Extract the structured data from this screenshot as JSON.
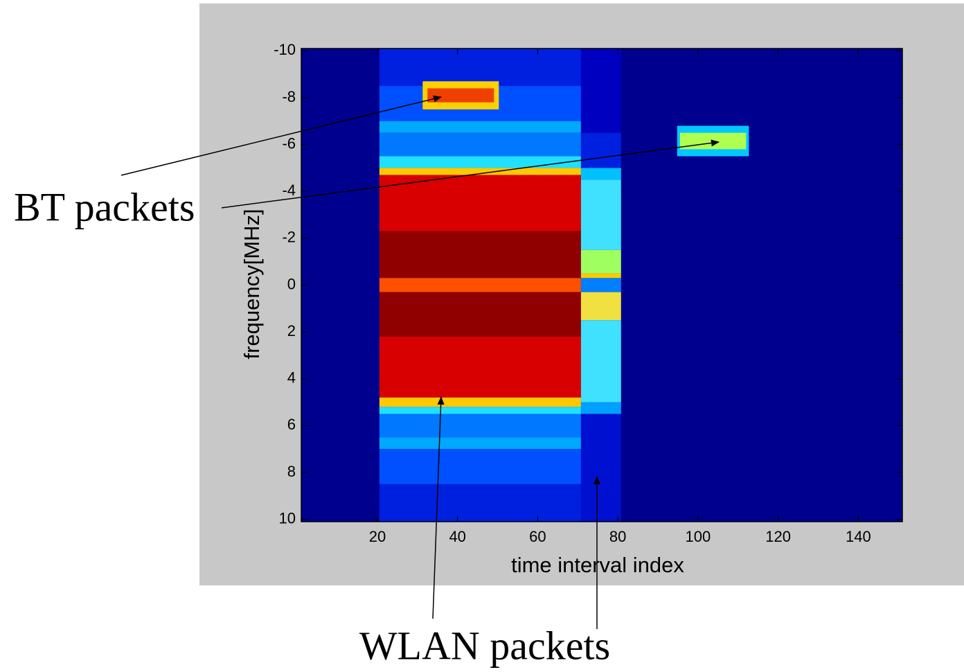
{
  "chart_data": {
    "type": "heatmap",
    "xlabel": "time interval index",
    "ylabel": "frequency[MHz]",
    "xlim": [
      1,
      151
    ],
    "ylim": [
      -10.1,
      10.1
    ],
    "y_reversed": true,
    "xticks": [
      20,
      40,
      60,
      80,
      100,
      120,
      140
    ],
    "yticks": [
      -10,
      -8,
      -6,
      -4,
      -2,
      0,
      2,
      4,
      6,
      8,
      10
    ],
    "background_color": "#00008f",
    "regions": [
      {
        "x": [
          20.5,
          70.8
        ],
        "y": [
          -10.1,
          -8.5
        ],
        "color": "#0020e0"
      },
      {
        "x": [
          20.5,
          70.8
        ],
        "y": [
          -8.5,
          -7
        ],
        "color": "#0050ff"
      },
      {
        "x": [
          20.5,
          70.8
        ],
        "y": [
          -7,
          -6.5
        ],
        "color": "#00a8ff"
      },
      {
        "x": [
          20.5,
          70.8
        ],
        "y": [
          -6.5,
          -5.5
        ],
        "color": "#0078ff"
      },
      {
        "x": [
          20.5,
          70.8
        ],
        "y": [
          -5.5,
          -5
        ],
        "color": "#20e0ff"
      },
      {
        "x": [
          20.5,
          70.8
        ],
        "y": [
          -5,
          -4.7
        ],
        "color": "#ffc800"
      },
      {
        "x": [
          20.5,
          70.8
        ],
        "y": [
          -4.7,
          -2.3
        ],
        "color": "#d80000"
      },
      {
        "x": [
          20.5,
          70.8
        ],
        "y": [
          -2.3,
          -0.3
        ],
        "color": "#900000"
      },
      {
        "x": [
          20.5,
          70.8
        ],
        "y": [
          -0.3,
          0.3
        ],
        "color": "#ff5000"
      },
      {
        "x": [
          20.5,
          70.8
        ],
        "y": [
          0.3,
          2.2
        ],
        "color": "#900000"
      },
      {
        "x": [
          20.5,
          70.8
        ],
        "y": [
          2.2,
          4.8
        ],
        "color": "#d80000"
      },
      {
        "x": [
          20.5,
          70.8
        ],
        "y": [
          4.8,
          5.2
        ],
        "color": "#ffc800"
      },
      {
        "x": [
          20.5,
          70.8
        ],
        "y": [
          5.2,
          5.5
        ],
        "color": "#20e0ff"
      },
      {
        "x": [
          20.5,
          70.8
        ],
        "y": [
          5.5,
          6.5
        ],
        "color": "#0078ff"
      },
      {
        "x": [
          20.5,
          70.8
        ],
        "y": [
          6.5,
          7
        ],
        "color": "#00a8ff"
      },
      {
        "x": [
          20.5,
          70.8
        ],
        "y": [
          7,
          8.5
        ],
        "color": "#0050ff"
      },
      {
        "x": [
          20.5,
          70.8
        ],
        "y": [
          8.5,
          10.1
        ],
        "color": "#0020e0"
      },
      {
        "x": [
          70.8,
          80.8
        ],
        "y": [
          -10.1,
          -6.5
        ],
        "color": "#0000c0"
      },
      {
        "x": [
          70.8,
          80.8
        ],
        "y": [
          -6.5,
          -5
        ],
        "color": "#0020e0"
      },
      {
        "x": [
          70.8,
          80.8
        ],
        "y": [
          -5,
          -4.5
        ],
        "color": "#00c0ff"
      },
      {
        "x": [
          70.8,
          80.8
        ],
        "y": [
          -4.5,
          -1.5
        ],
        "color": "#40e0ff"
      },
      {
        "x": [
          70.8,
          80.8
        ],
        "y": [
          -1.5,
          -0.5
        ],
        "color": "#a0ff60"
      },
      {
        "x": [
          70.8,
          80.8
        ],
        "y": [
          -0.5,
          -0.3
        ],
        "color": "#ffc800"
      },
      {
        "x": [
          70.8,
          80.8
        ],
        "y": [
          -0.3,
          0.3
        ],
        "color": "#0080ff"
      },
      {
        "x": [
          70.8,
          80.8
        ],
        "y": [
          0.3,
          1.5
        ],
        "color": "#f0e040"
      },
      {
        "x": [
          70.8,
          80.8
        ],
        "y": [
          1.5,
          5
        ],
        "color": "#40e0ff"
      },
      {
        "x": [
          70.8,
          80.8
        ],
        "y": [
          5,
          5.5
        ],
        "color": "#00a0ff"
      },
      {
        "x": [
          70.8,
          80.8
        ],
        "y": [
          5.5,
          10.1
        ],
        "color": "#0010d0"
      },
      {
        "x": [
          31.3,
          50.3
        ],
        "y": [
          -8.7,
          -7.5
        ],
        "color": "#ffd000"
      },
      {
        "x": [
          32.5,
          49.1
        ],
        "y": [
          -8.4,
          -7.8
        ],
        "color": "#f04000"
      },
      {
        "x": [
          94.8,
          112.7
        ],
        "y": [
          -6.8,
          -5.5
        ],
        "color": "#00c8ff"
      },
      {
        "x": [
          95.5,
          112
        ],
        "y": [
          -6.5,
          -5.8
        ],
        "color": "#b0ff50"
      }
    ],
    "annotations": [
      "BT packets",
      "WLAN packets"
    ]
  }
}
